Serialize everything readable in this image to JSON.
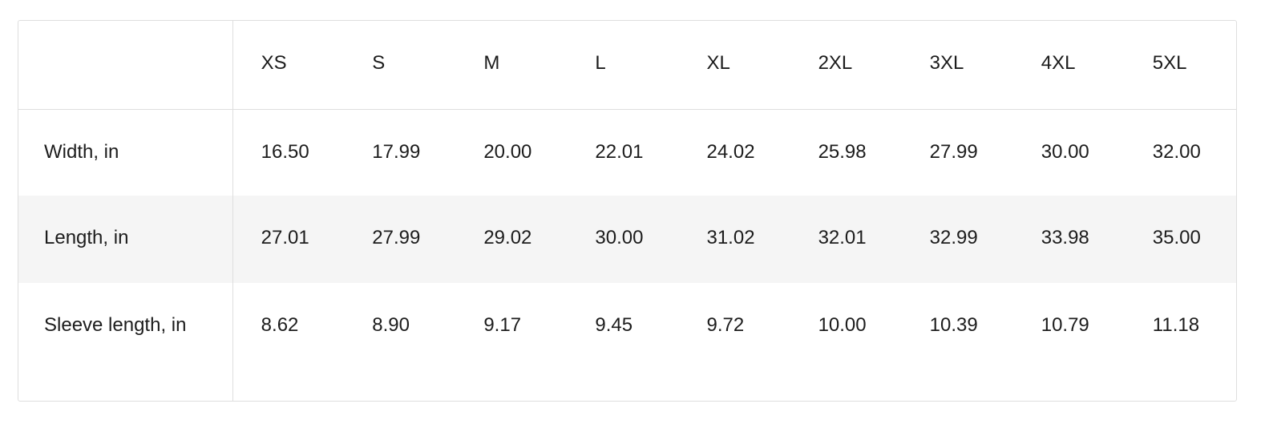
{
  "table": {
    "corner": "",
    "sizes": [
      "XS",
      "S",
      "M",
      "L",
      "XL",
      "2XL",
      "3XL",
      "4XL",
      "5XL"
    ],
    "rows": [
      {
        "label": "Width, in",
        "values": [
          "16.50",
          "17.99",
          "20.00",
          "22.01",
          "24.02",
          "25.98",
          "27.99",
          "30.00",
          "32.00"
        ]
      },
      {
        "label": "Length, in",
        "values": [
          "27.01",
          "27.99",
          "29.02",
          "30.00",
          "31.02",
          "32.01",
          "32.99",
          "33.98",
          "35.00"
        ]
      },
      {
        "label": "Sleeve length, in",
        "values": [
          "8.62",
          "8.90",
          "9.17",
          "9.45",
          "9.72",
          "10.00",
          "10.39",
          "10.79",
          "11.18"
        ]
      }
    ]
  }
}
